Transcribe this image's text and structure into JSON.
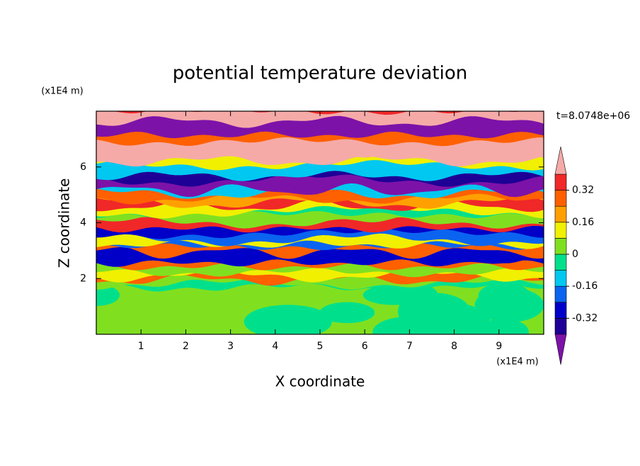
{
  "chart_data": {
    "type": "contour",
    "title": "potential temperature deviation",
    "annotation": "t=8.0748e+06",
    "xlabel": "X coordinate",
    "ylabel": "Z coordinate",
    "x_unit": "(x1E4 m)",
    "y_unit": "(x1E4 m)",
    "xlim": [
      0,
      10
    ],
    "xticks": [
      1,
      2,
      3,
      4,
      5,
      6,
      7,
      8,
      9
    ],
    "ylim": [
      0,
      8
    ],
    "yticks": [
      2,
      4,
      6
    ],
    "colorbar": {
      "lim": [
        -0.4,
        0.4
      ],
      "ticks": [
        0.32,
        0.16,
        0,
        -0.16,
        -0.32
      ],
      "colors": [
        "#1e0096",
        "#0000c8",
        "#0a64f0",
        "#00c8f0",
        "#00e08c",
        "#80e020",
        "#f0f000",
        "#ffa000",
        "#ff6000",
        "#f02828"
      ],
      "under_color": "#7d12a8",
      "over_color": "#f5aaa8"
    }
  }
}
